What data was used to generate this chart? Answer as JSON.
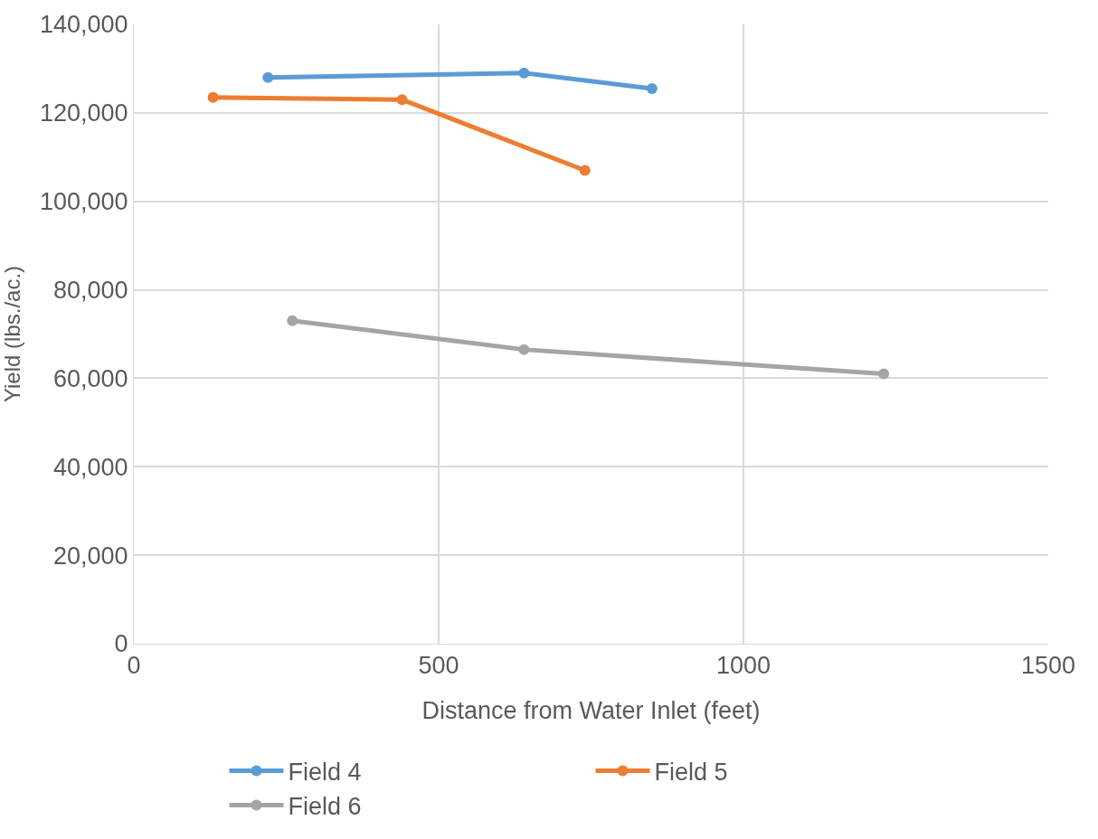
{
  "chart_data": {
    "type": "line",
    "xlabel": "Distance from Water Inlet (feet)",
    "ylabel": "Yield (lbs./ac.)",
    "xlim": [
      0,
      1500
    ],
    "xticks": [
      0,
      500,
      1000,
      1500
    ],
    "ylim": [
      0,
      140000
    ],
    "yticks": [
      {
        "value": 0,
        "label": "0"
      },
      {
        "value": 20000,
        "label": "20,000"
      },
      {
        "value": 40000,
        "label": "40,000"
      },
      {
        "value": 60000,
        "label": "60,000"
      },
      {
        "value": 80000,
        "label": "80,000"
      },
      {
        "value": 100000,
        "label": "100,000"
      },
      {
        "value": 120000,
        "label": "120,000"
      },
      {
        "value": 140000,
        "label": "140,000"
      }
    ],
    "grid": true,
    "legend": "bottom",
    "marker": "circle",
    "line_style": "solid",
    "series": [
      {
        "name": "Field 4",
        "color": "#5b9bd5",
        "x": [
          220,
          640,
          850
        ],
        "values": [
          128000,
          129000,
          125500
        ]
      },
      {
        "name": "Field 5",
        "color": "#ed7d31",
        "x": [
          130,
          440,
          740
        ],
        "values": [
          123500,
          123000,
          107000
        ]
      },
      {
        "name": "Field 6",
        "color": "#a5a5a5",
        "x": [
          260,
          640,
          1230
        ],
        "values": [
          73000,
          66500,
          61000
        ]
      }
    ]
  }
}
